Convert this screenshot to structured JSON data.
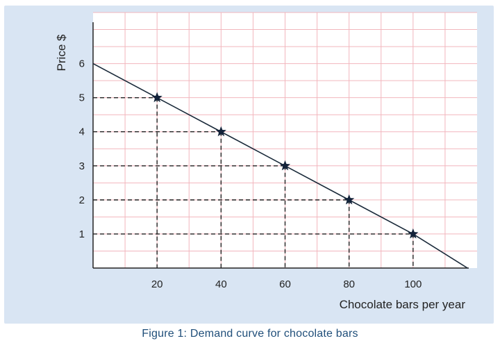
{
  "caption": "Figure 1: Demand curve for chocolate bars",
  "chart_data": {
    "type": "line",
    "title": "",
    "xlabel": "Chocolate bars per year",
    "ylabel": "Price $",
    "xlim": [
      0,
      120
    ],
    "ylim": [
      0,
      7.5
    ],
    "x_ticks": [
      20,
      40,
      60,
      80,
      100
    ],
    "y_ticks": [
      1,
      2,
      3,
      4,
      5,
      6
    ],
    "grid": true,
    "colors": {
      "background": "#d9e5f3",
      "plot_background": "#ffffff",
      "grid": "#f2b6bd",
      "line": "#1a2a3a",
      "marker": "#14233a"
    },
    "series": [
      {
        "x": [
          0,
          20,
          40,
          60,
          80,
          100,
          117
        ],
        "y": [
          6,
          5,
          4,
          3,
          2,
          1,
          0
        ]
      }
    ],
    "points": [
      {
        "x": 20,
        "y": 5
      },
      {
        "x": 40,
        "y": 4
      },
      {
        "x": 60,
        "y": 3
      },
      {
        "x": 80,
        "y": 2
      },
      {
        "x": 100,
        "y": 1
      }
    ],
    "marker": "star",
    "reference_lines": "dashed"
  }
}
